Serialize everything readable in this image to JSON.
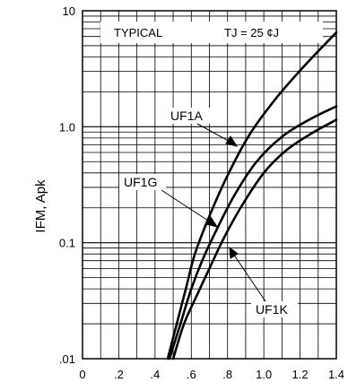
{
  "chart_data": {
    "type": "line",
    "ylabel": "IFM, Apk",
    "xlabel": "",
    "yscale": "log",
    "xlim": [
      0,
      1.4
    ],
    "ylim": [
      0.01,
      10
    ],
    "grid": true,
    "x_ticks": [
      0,
      0.2,
      0.4,
      0.6,
      0.8,
      1.0,
      1.2,
      1.4
    ],
    "x_tick_labels": [
      "0",
      ".2",
      ".4",
      ".6",
      ".8",
      "1.0",
      "1.2",
      "1.4"
    ],
    "y_ticks": [
      0.01,
      0.1,
      1.0,
      10
    ],
    "y_tick_labels": [
      ".01",
      "0.1",
      "1.0",
      "10"
    ],
    "annotations": {
      "typical": "TYPICAL",
      "tj": "TJ = 25 ¢J"
    },
    "series": [
      {
        "name": "UF1A",
        "x": [
          0.47,
          0.52,
          0.57,
          0.62,
          0.7,
          0.8,
          0.92,
          1.06,
          1.22,
          1.4
        ],
        "y": [
          0.01,
          0.02,
          0.04,
          0.08,
          0.17,
          0.38,
          0.85,
          1.7,
          3.3,
          6.5
        ]
      },
      {
        "name": "UF1G",
        "x": [
          0.48,
          0.54,
          0.6,
          0.66,
          0.74,
          0.84,
          0.96,
          1.1,
          1.25,
          1.4
        ],
        "y": [
          0.01,
          0.02,
          0.04,
          0.07,
          0.13,
          0.26,
          0.5,
          0.82,
          1.15,
          1.5
        ]
      },
      {
        "name": "UF1K",
        "x": [
          0.5,
          0.56,
          0.63,
          0.7,
          0.78,
          0.88,
          1.0,
          1.12,
          1.26,
          1.4
        ],
        "y": [
          0.01,
          0.02,
          0.035,
          0.06,
          0.11,
          0.21,
          0.4,
          0.62,
          0.87,
          1.15
        ]
      }
    ]
  }
}
